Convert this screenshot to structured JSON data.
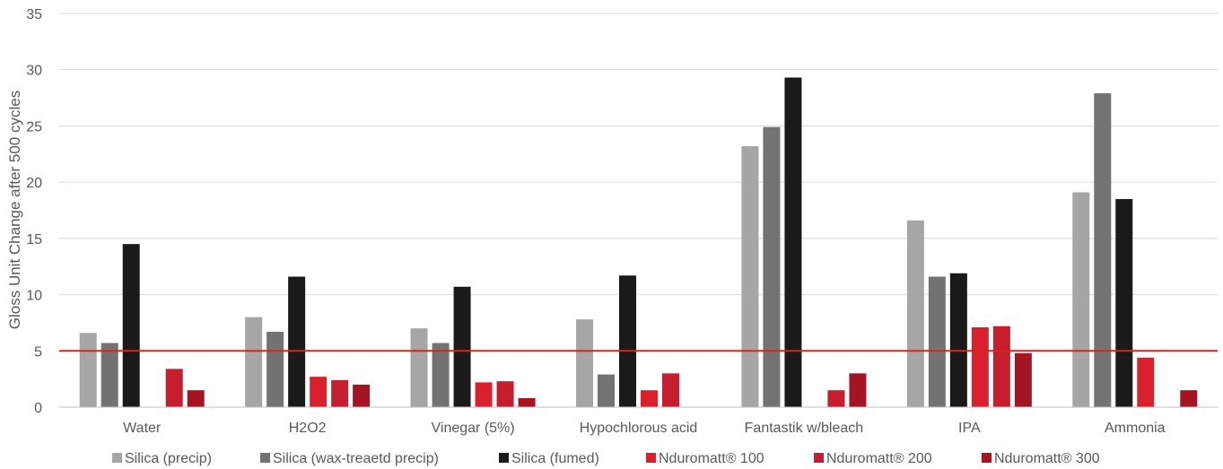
{
  "chart_data": {
    "type": "bar",
    "title": "",
    "xlabel": "",
    "ylabel": "Gloss Unit Change after 500 cycles",
    "ylim": [
      0,
      35
    ],
    "yticks": [
      "0",
      "5",
      "10",
      "15",
      "20",
      "25",
      "30",
      "35"
    ],
    "grid": true,
    "legend_position": "bottom",
    "categories": [
      "Water",
      "H2O2",
      "Vinegar (5%)",
      "Hypochlorous acid",
      "Fantastik w/bleach",
      "IPA",
      "Ammonia"
    ],
    "series": [
      {
        "name": "Silica (precip)",
        "color": "#a6a6a6",
        "values": [
          6.6,
          8.0,
          7.0,
          7.8,
          23.2,
          16.6,
          19.1
        ]
      },
      {
        "name": "Silica (wax-treaetd precip)",
        "color": "#737373",
        "values": [
          5.7,
          6.7,
          5.7,
          2.9,
          24.9,
          11.6,
          27.9
        ]
      },
      {
        "name": "Silica (fumed)",
        "color": "#1a1a1a",
        "values": [
          14.5,
          11.6,
          10.7,
          11.7,
          29.3,
          11.9,
          18.5
        ]
      },
      {
        "name": "Nduromatt® 100",
        "color": "#d9202f",
        "values": [
          null,
          2.7,
          2.2,
          1.5,
          null,
          7.1,
          4.4
        ]
      },
      {
        "name": "Nduromatt® 200",
        "color": "#c41e2f",
        "values": [
          3.4,
          2.4,
          2.3,
          3.0,
          1.5,
          7.2,
          null
        ]
      },
      {
        "name": "Nduromatt® 300",
        "color": "#a31523",
        "values": [
          1.5,
          2.0,
          0.8,
          null,
          3.0,
          4.8,
          1.5
        ]
      }
    ],
    "reference_line": {
      "value": 5.0,
      "color": "#e02020"
    }
  }
}
